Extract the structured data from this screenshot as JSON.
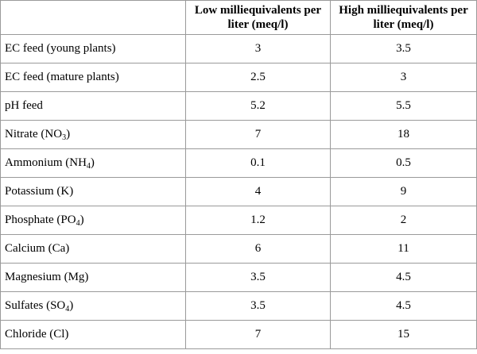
{
  "table": {
    "headers": {
      "parameter": "",
      "low": "Low milliequivalents per liter (meq/l)",
      "high": "High milliequivalents per liter (meq/l)"
    },
    "rows": [
      {
        "label": "EC feed (young plants)",
        "label_sub": "",
        "label_suffix": "",
        "low": "3",
        "high": "3.5"
      },
      {
        "label": "EC feed (mature plants)",
        "label_sub": "",
        "label_suffix": "",
        "low": "2.5",
        "high": "3"
      },
      {
        "label": "pH feed",
        "label_sub": "",
        "label_suffix": "",
        "low": "5.2",
        "high": "5.5"
      },
      {
        "label": "Nitrate (NO",
        "label_sub": "3",
        "label_suffix": ")",
        "low": "7",
        "high": "18"
      },
      {
        "label": "Ammonium (NH",
        "label_sub": "4",
        "label_suffix": ")",
        "low": "0.1",
        "high": "0.5"
      },
      {
        "label": "Potassium (K)",
        "label_sub": "",
        "label_suffix": "",
        "low": "4",
        "high": "9"
      },
      {
        "label": "Phosphate (PO",
        "label_sub": "4",
        "label_suffix": ")",
        "low": "1.2",
        "high": "2"
      },
      {
        "label": "Calcium (Ca)",
        "label_sub": "",
        "label_suffix": "",
        "low": "6",
        "high": "11"
      },
      {
        "label": "Magnesium (Mg)",
        "label_sub": "",
        "label_suffix": "",
        "low": "3.5",
        "high": "4.5"
      },
      {
        "label": "Sulfates (SO",
        "label_sub": "4",
        "label_suffix": ")",
        "low": "3.5",
        "high": "4.5"
      },
      {
        "label": "Chloride (Cl)",
        "label_sub": "",
        "label_suffix": "",
        "low": "7",
        "high": "15"
      }
    ]
  }
}
